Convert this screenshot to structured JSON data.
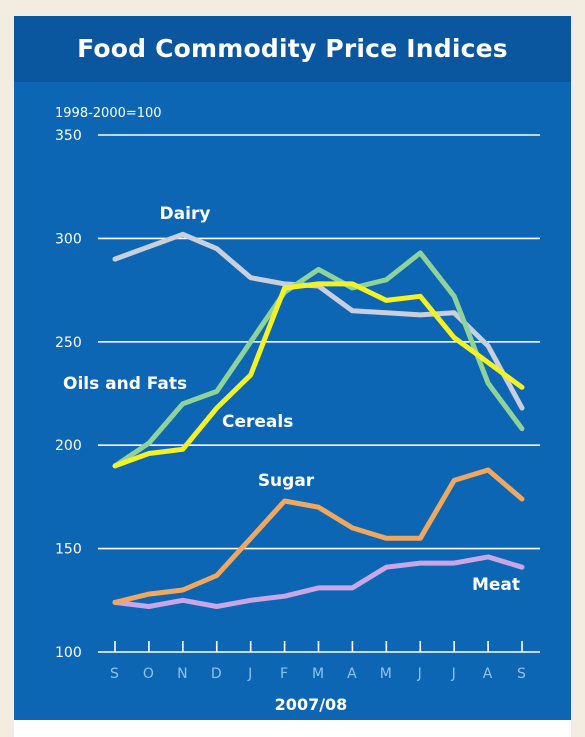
{
  "chart_data": {
    "type": "line",
    "title": "Food Commodity Price Indices",
    "unit_label": "1998-2000=100",
    "xlabel": "2007/08",
    "ylabel": "",
    "ylim": [
      100,
      350
    ],
    "yticks": [
      100,
      150,
      200,
      250,
      300,
      350
    ],
    "categories": [
      "S",
      "O",
      "N",
      "D",
      "J",
      "F",
      "M",
      "A",
      "M",
      "J",
      "J",
      "A",
      "S"
    ],
    "grid": true,
    "series": [
      {
        "name": "Dairy",
        "color": "#c9cfdc",
        "values": [
          290,
          296,
          302,
          295,
          281,
          278,
          277,
          265,
          264,
          263,
          264,
          248,
          218
        ]
      },
      {
        "name": "Oils and Fats",
        "color": "#8fd39a",
        "values": [
          190,
          201,
          220,
          226,
          250,
          274,
          285,
          276,
          280,
          293,
          272,
          230,
          208
        ]
      },
      {
        "name": "Cereals",
        "color": "#f4f224",
        "values": [
          190,
          196,
          198,
          218,
          234,
          276,
          278,
          278,
          270,
          272,
          252,
          240,
          228
        ]
      },
      {
        "name": "Sugar",
        "color": "#f0a860",
        "values": [
          124,
          128,
          130,
          137,
          155,
          173,
          170,
          160,
          155,
          155,
          183,
          188,
          174
        ]
      },
      {
        "name": "Meat",
        "color": "#c9a6e6",
        "values": [
          124,
          122,
          125,
          122,
          125,
          127,
          131,
          131,
          141,
          143,
          143,
          146,
          141
        ]
      }
    ]
  }
}
